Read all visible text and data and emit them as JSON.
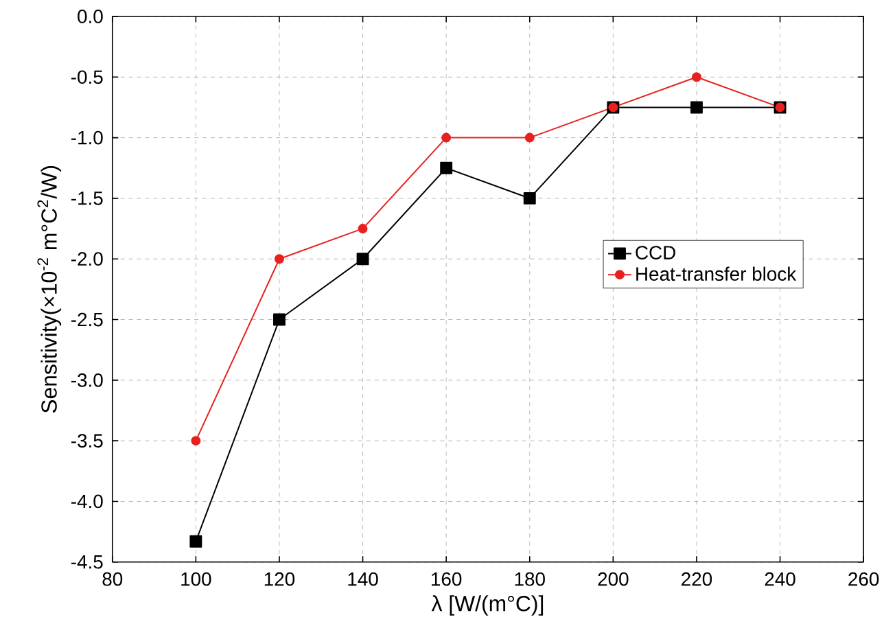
{
  "chart_data": {
    "type": "line",
    "xlabel": "λ [W/(m°C)]",
    "ylabel": "Sensitivity(×10$^{-2}$ m°C$^{2}$/W)",
    "x": [
      100,
      120,
      140,
      160,
      180,
      200,
      220,
      240
    ],
    "series": [
      {
        "name": "CCD",
        "color": "#000000",
        "marker": "square",
        "values": [
          -4.33,
          -2.5,
          -2.0,
          -1.25,
          -1.5,
          -0.75,
          -0.75,
          -0.75
        ]
      },
      {
        "name": "Heat-transfer block",
        "color": "#e8201f",
        "marker": "circle",
        "values": [
          -3.5,
          -2.0,
          -1.75,
          -1.0,
          -1.0,
          -0.75,
          -0.5,
          -0.75
        ]
      }
    ],
    "xlim": [
      80,
      260
    ],
    "xticks": [
      80,
      100,
      120,
      140,
      160,
      180,
      200,
      220,
      240,
      260
    ],
    "ylim": [
      -4.5,
      0
    ],
    "yticks": [
      {
        "value": -4.5,
        "label": "-4.5"
      },
      {
        "value": -4.0,
        "label": "-4.0"
      },
      {
        "value": -3.5,
        "label": "-3.5"
      },
      {
        "value": -3.0,
        "label": "-3.0"
      },
      {
        "value": -2.5,
        "label": "-2.5"
      },
      {
        "value": -2.0,
        "label": "-2.0"
      },
      {
        "value": -1.5,
        "label": "-1.5"
      },
      {
        "value": -1.0,
        "label": "-1.0"
      },
      {
        "value": -0.5,
        "label": "-0.5"
      },
      {
        "value": 0,
        "label": "0.0"
      }
    ],
    "grid": true,
    "legend": "right",
    "line_style": "solid"
  }
}
